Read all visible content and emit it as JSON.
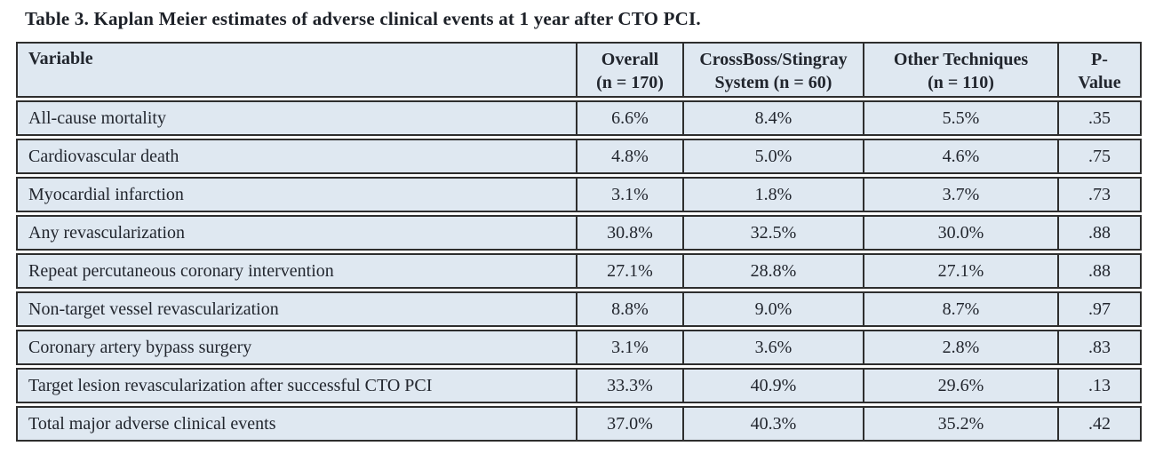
{
  "title": "Table 3. Kaplan Meier estimates of adverse clinical events at 1 year after CTO PCI.",
  "colors": {
    "cell_background": "#dfe8f1",
    "border": "#2e2e2e",
    "text": "#22262e",
    "page_background": "#ffffff"
  },
  "table": {
    "columns": [
      {
        "label": "Variable",
        "sub": ""
      },
      {
        "label": "Overall",
        "sub": "(n = 170)"
      },
      {
        "label": "CrossBoss/Stingray",
        "sub": "System (n = 60)"
      },
      {
        "label": "Other Techniques",
        "sub": "(n = 110)"
      },
      {
        "label": "P-",
        "sub": "Value"
      }
    ],
    "rows": [
      {
        "variable": "All-cause mortality",
        "overall": "6.6%",
        "crossboss": "8.4%",
        "other": "5.5%",
        "p": ".35"
      },
      {
        "variable": "Cardiovascular death",
        "overall": "4.8%",
        "crossboss": "5.0%",
        "other": "4.6%",
        "p": ".75"
      },
      {
        "variable": "Myocardial infarction",
        "overall": "3.1%",
        "crossboss": "1.8%",
        "other": "3.7%",
        "p": ".73"
      },
      {
        "variable": "Any revascularization",
        "overall": "30.8%",
        "crossboss": "32.5%",
        "other": "30.0%",
        "p": ".88"
      },
      {
        "variable": "Repeat percutaneous coronary intervention",
        "overall": "27.1%",
        "crossboss": "28.8%",
        "other": "27.1%",
        "p": ".88"
      },
      {
        "variable": "Non-target vessel revascularization",
        "overall": "8.8%",
        "crossboss": "9.0%",
        "other": "8.7%",
        "p": ".97"
      },
      {
        "variable": "Coronary artery bypass surgery",
        "overall": "3.1%",
        "crossboss": "3.6%",
        "other": "2.8%",
        "p": ".83"
      },
      {
        "variable": "Target lesion revascularization after successful CTO PCI",
        "overall": "33.3%",
        "crossboss": "40.9%",
        "other": "29.6%",
        "p": ".13"
      },
      {
        "variable": "Total major adverse clinical events",
        "overall": "37.0%",
        "crossboss": "40.3%",
        "other": "35.2%",
        "p": ".42"
      }
    ]
  }
}
